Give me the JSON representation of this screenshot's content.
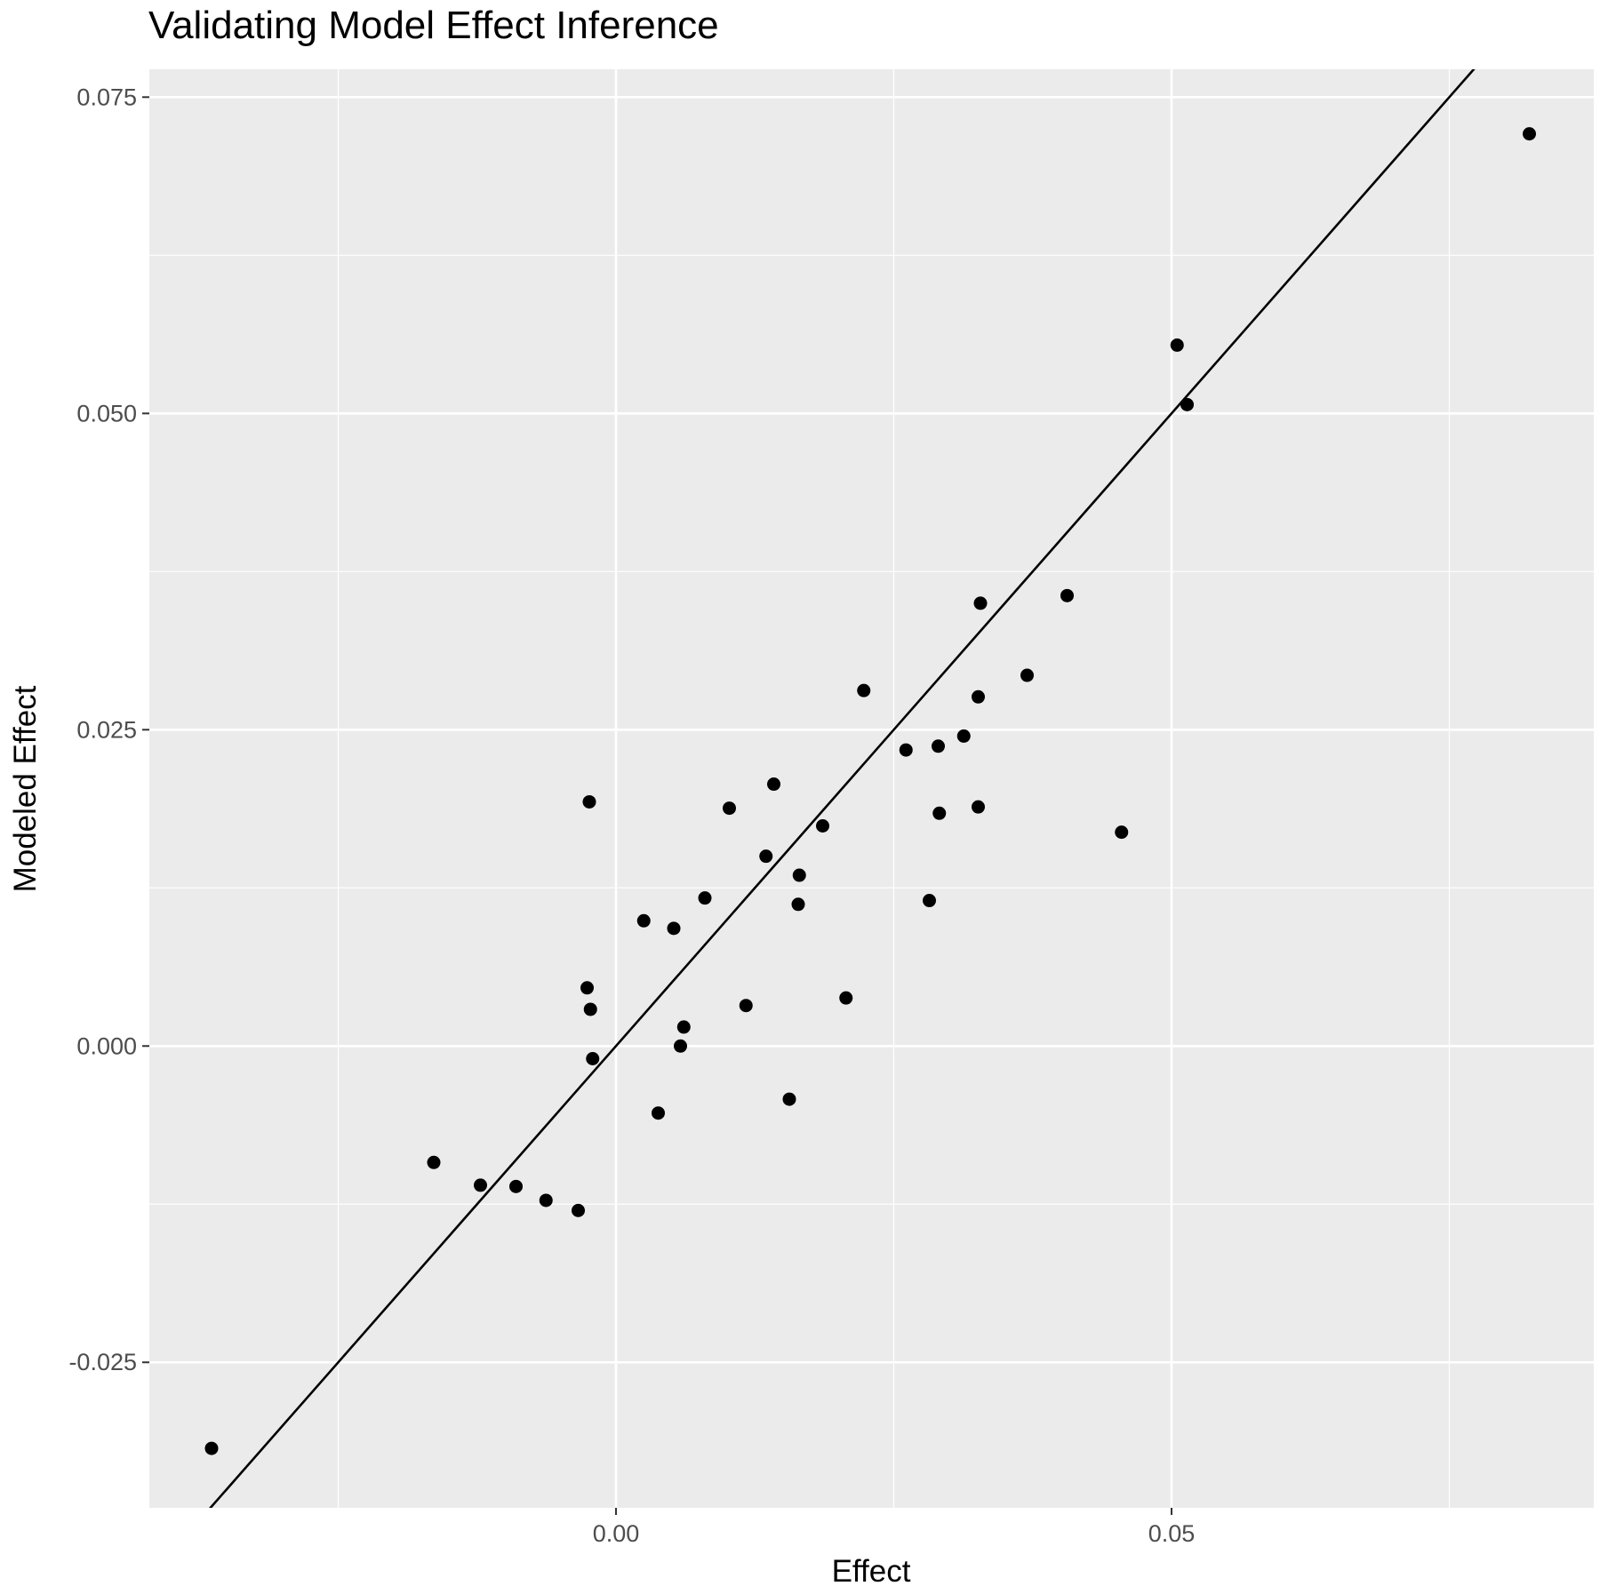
{
  "chart_data": {
    "type": "scatter",
    "title": "Validating Model Effect Inference",
    "xlabel": "Effect",
    "ylabel": "Modeled Effect",
    "xlim": [
      -0.042,
      0.088
    ],
    "ylim": [
      -0.0365,
      0.0772
    ],
    "x_ticks": [
      0.0,
      0.05
    ],
    "x_tick_labels": [
      "0.00",
      "0.05"
    ],
    "x_minor_grid": [
      -0.025,
      0.025,
      0.075
    ],
    "y_ticks": [
      -0.025,
      0.0,
      0.025,
      0.05,
      0.075
    ],
    "y_tick_labels": [
      "-0.025",
      "0.000",
      "0.025",
      "0.050",
      "0.075"
    ],
    "y_minor_grid": [
      -0.0125,
      0.0125,
      0.0375,
      0.0625
    ],
    "grid": true,
    "background": "#ebebeb",
    "point_color": "#000000",
    "reference_line": {
      "slope": 1,
      "intercept": 0,
      "color": "#000000"
    },
    "points": [
      {
        "x": -0.0364,
        "y": -0.0318
      },
      {
        "x": -0.0164,
        "y": -0.0092
      },
      {
        "x": -0.0122,
        "y": -0.011
      },
      {
        "x": -0.009,
        "y": -0.0111
      },
      {
        "x": -0.0063,
        "y": -0.0122
      },
      {
        "x": -0.0034,
        "y": -0.013
      },
      {
        "x": -0.0026,
        "y": 0.0046
      },
      {
        "x": -0.0023,
        "y": 0.0029
      },
      {
        "x": -0.0024,
        "y": 0.0193
      },
      {
        "x": -0.0021,
        "y": -0.001
      },
      {
        "x": 0.0025,
        "y": 0.0099
      },
      {
        "x": 0.0038,
        "y": -0.0053
      },
      {
        "x": 0.0052,
        "y": 0.0093
      },
      {
        "x": 0.0058,
        "y": 0.0
      },
      {
        "x": 0.0061,
        "y": 0.0015
      },
      {
        "x": 0.008,
        "y": 0.0117
      },
      {
        "x": 0.0102,
        "y": 0.0188
      },
      {
        "x": 0.0117,
        "y": 0.0032
      },
      {
        "x": 0.0135,
        "y": 0.015
      },
      {
        "x": 0.0142,
        "y": 0.0207
      },
      {
        "x": 0.0156,
        "y": -0.0042
      },
      {
        "x": 0.0164,
        "y": 0.0112
      },
      {
        "x": 0.0165,
        "y": 0.0135
      },
      {
        "x": 0.0186,
        "y": 0.0174
      },
      {
        "x": 0.0207,
        "y": 0.0038
      },
      {
        "x": 0.0223,
        "y": 0.0281
      },
      {
        "x": 0.0261,
        "y": 0.0234
      },
      {
        "x": 0.0282,
        "y": 0.0115
      },
      {
        "x": 0.029,
        "y": 0.0237
      },
      {
        "x": 0.0291,
        "y": 0.0184
      },
      {
        "x": 0.0313,
        "y": 0.0245
      },
      {
        "x": 0.0326,
        "y": 0.0276
      },
      {
        "x": 0.0326,
        "y": 0.0189
      },
      {
        "x": 0.0328,
        "y": 0.035
      },
      {
        "x": 0.037,
        "y": 0.0293
      },
      {
        "x": 0.0406,
        "y": 0.0356
      },
      {
        "x": 0.0455,
        "y": 0.0169
      },
      {
        "x": 0.0505,
        "y": 0.0554
      },
      {
        "x": 0.0514,
        "y": 0.0507
      },
      {
        "x": 0.0822,
        "y": 0.0721
      }
    ]
  }
}
